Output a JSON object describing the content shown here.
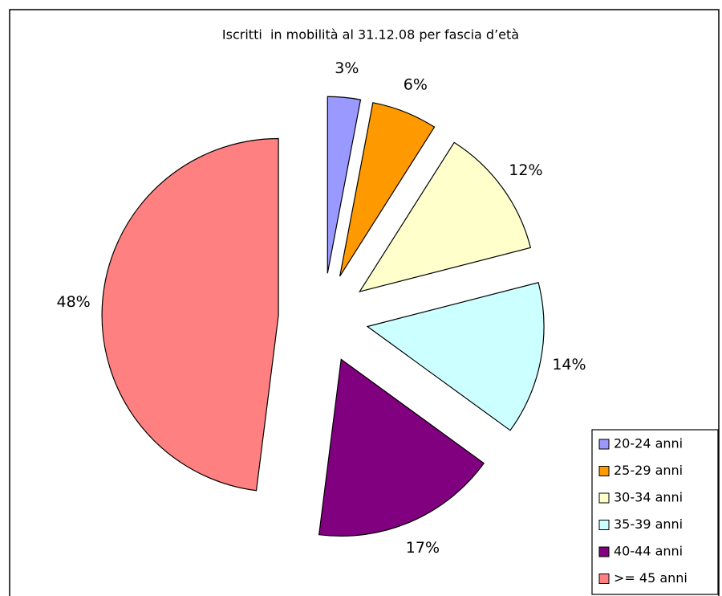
{
  "chart_data": {
    "type": "pie",
    "title": "Iscritti  in mobilità al 31.12.08 per fascia d’età",
    "categories": [
      "20-24 anni",
      "25-29 anni",
      "30-34 anni",
      "35-39 anni",
      "40-44 anni",
      ">= 45 anni"
    ],
    "values": [
      3,
      6,
      12,
      14,
      17,
      48
    ],
    "value_labels": [
      "3%",
      "6%",
      "12%",
      "14%",
      "17%",
      "48%"
    ],
    "colors": [
      "#9999ff",
      "#ff9900",
      "#ffffcc",
      "#ccffff",
      "#800080",
      "#ff8080"
    ],
    "exploded": true,
    "legend": "bottom-right"
  }
}
